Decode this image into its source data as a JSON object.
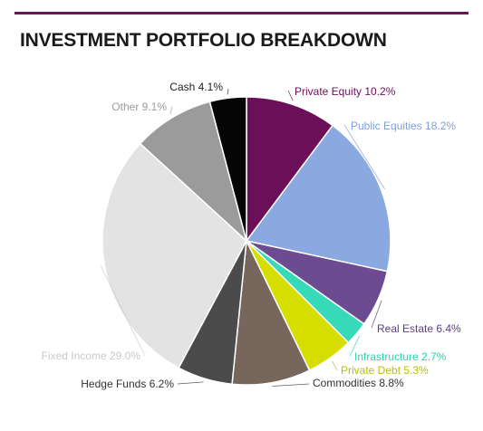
{
  "title": "INVESTMENT PORTFOLIO BREAKDOWN",
  "chart_data": {
    "type": "pie",
    "title": "INVESTMENT PORTFOLIO BREAKDOWN",
    "unit": "%",
    "slices": [
      {
        "label": "Private Equity",
        "value": 10.2,
        "color": "#6b1058"
      },
      {
        "label": "Public Equities",
        "value": 18.2,
        "color": "#8aa9e0"
      },
      {
        "label": "Real Estate",
        "value": 6.4,
        "color": "#6d4b91"
      },
      {
        "label": "Infrastructure",
        "value": 2.7,
        "color": "#36d9b8"
      },
      {
        "label": "Private Debt",
        "value": 5.3,
        "color": "#d6de00"
      },
      {
        "label": "Commodities",
        "value": 8.8,
        "color": "#76665c"
      },
      {
        "label": "Hedge Funds",
        "value": 6.2,
        "color": "#4b4b4b"
      },
      {
        "label": "Fixed Income",
        "value": 29.0,
        "color": "#e3e3e3"
      },
      {
        "label": "Other",
        "value": 9.1,
        "color": "#9b9b9b"
      },
      {
        "label": "Cash",
        "value": 4.1,
        "color": "#050505"
      }
    ],
    "label_texts": [
      "Private Equity 10.2%",
      "Public Equities 18.2%",
      "Real Estate 6.4%",
      "Infrastructure 2.7%",
      "Private Debt 5.3%",
      "Commodities 8.8%",
      "Hedge Funds 6.2%",
      "Fixed Income 29.0%",
      "Other 9.1%",
      "Cash 4.1%"
    ],
    "label_colors": [
      "#6b1058",
      "#7f9fd8",
      "#5e3f82",
      "#2fcfad",
      "#b8c000",
      "#333333",
      "#333333",
      "#c9c9c9",
      "#9b9b9b",
      "#222222"
    ],
    "start_angle": "12 o'clock",
    "direction": "clockwise"
  }
}
